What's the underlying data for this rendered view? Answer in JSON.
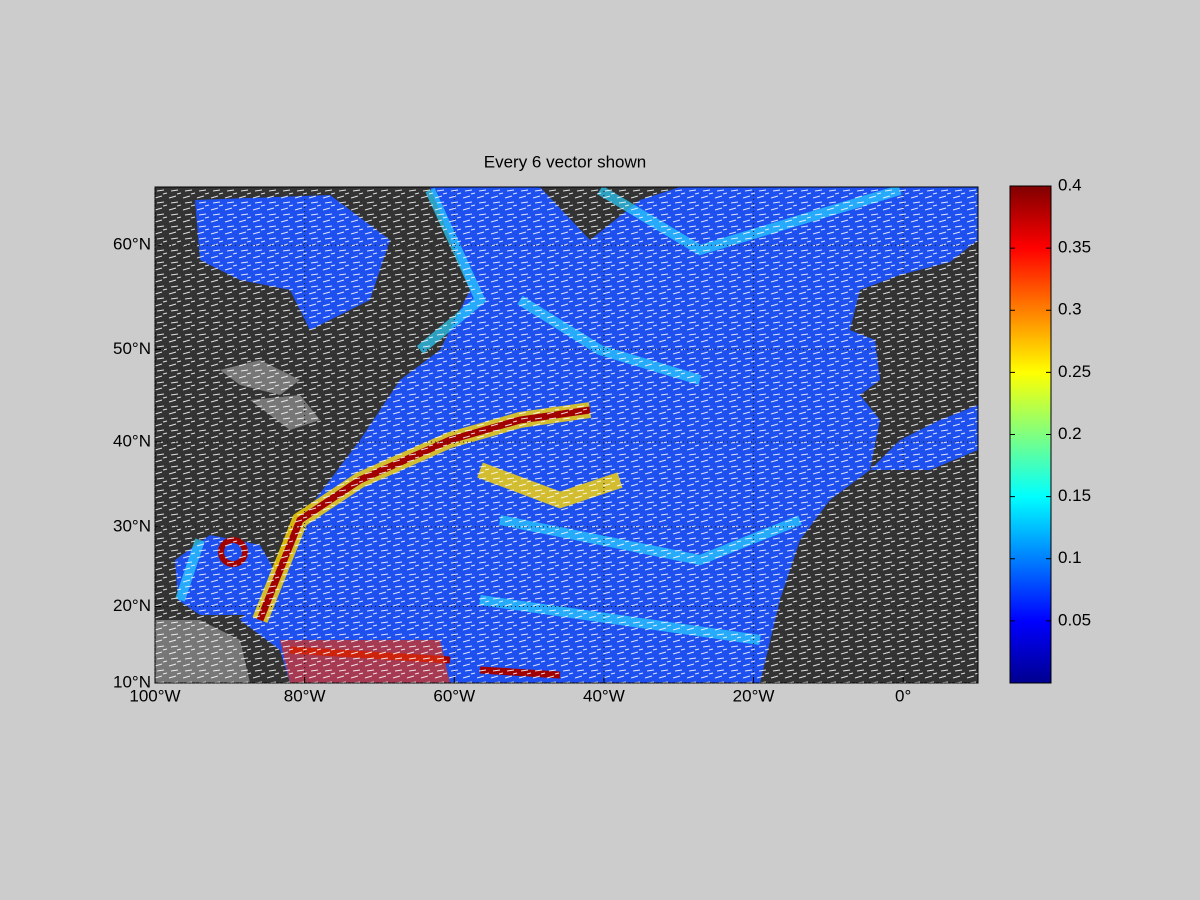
{
  "chart_data": {
    "type": "vector-map",
    "title": "Every 6 vector shown",
    "projection": "miller",
    "xlim": [
      -100,
      10
    ],
    "ylim": [
      10,
      65
    ],
    "xticks": [
      {
        "value": -100,
        "label": "100°W"
      },
      {
        "value": -80,
        "label": "80°W"
      },
      {
        "value": -60,
        "label": "60°W"
      },
      {
        "value": -40,
        "label": "40°W"
      },
      {
        "value": -20,
        "label": "20°W"
      },
      {
        "value": 0,
        "label": "0°"
      }
    ],
    "yticks": [
      {
        "value": 10,
        "label": "10°N"
      },
      {
        "value": 20,
        "label": "20°N"
      },
      {
        "value": 30,
        "label": "30°N"
      },
      {
        "value": 40,
        "label": "40°N"
      },
      {
        "value": 50,
        "label": "50°N"
      },
      {
        "value": 60,
        "label": "60°N"
      }
    ],
    "grid": true,
    "colorbar": {
      "colormap": "jet",
      "clim": [
        0,
        0.4
      ],
      "ticks": [
        0.05,
        0.1,
        0.15,
        0.2,
        0.25,
        0.3,
        0.35,
        0.4
      ]
    }
  }
}
